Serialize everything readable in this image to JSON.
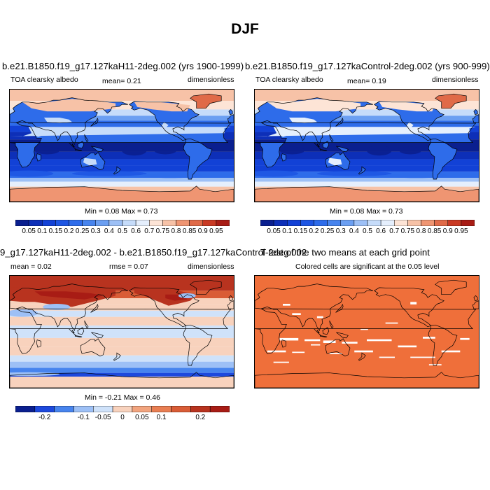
{
  "figure": {
    "title": "DJF"
  },
  "panels": [
    {
      "id": "case1",
      "title": "b.e21.B1850.f19_g17.127kaH11-2deg.002 (yrs 1900-1999)",
      "left_label": "TOA clearsky albedo",
      "center_label": "mean=  0.21",
      "right_label": "dimensionless",
      "minmax": "Min =   0.08 Max =   0.73",
      "colorbar_ticks": [
        "0.05",
        "0.1",
        "0.15",
        "0.2",
        "0.25",
        "0.3",
        "0.4",
        "0.5",
        "0.6",
        "0.7",
        "0.75",
        "0.8",
        "0.85",
        "0.9",
        "0.95"
      ]
    },
    {
      "id": "case2",
      "title": "b.e21.B1850.f19_g17.127kaControl-2deg.002 (yrs 900-999)",
      "left_label": "TOA clearsky albedo",
      "center_label": "mean=  0.19",
      "right_label": "dimensionless",
      "minmax": "Min =   0.08 Max =   0.73",
      "colorbar_ticks": [
        "0.05",
        "0.1",
        "0.15",
        "0.2",
        "0.25",
        "0.3",
        "0.4",
        "0.5",
        "0.6",
        "0.7",
        "0.75",
        "0.8",
        "0.85",
        "0.9",
        "0.95"
      ]
    },
    {
      "id": "diff",
      "title": "9_g17.127kaH11-2deg.002 - b.e21.B1850.f19_g17.127kaControl-2deg.002",
      "left_label": "mean =  0.02",
      "center_label": "rmse =  0.07",
      "right_label": "dimensionless",
      "minmax": "Min =  -0.21 Max =   0.46",
      "colorbar_ticks": [
        "-0.2",
        "-0.1",
        "-0.05",
        "0",
        "0.05",
        "0.1",
        "0.2"
      ]
    },
    {
      "id": "ttest",
      "title": "T-test of the two means at each grid point",
      "subtitle": "Colored cells are significant at the 0.05 level"
    }
  ],
  "colors": {
    "albedo_scale": [
      "#0a1f8f",
      "#0d2fb8",
      "#1241d6",
      "#1e56e3",
      "#2e6cea",
      "#4784ee",
      "#6b9ff2",
      "#9dc0f6",
      "#c6dcfa",
      "#e5effd",
      "#fde4d6",
      "#f7c2a7",
      "#ef9572",
      "#e06a48",
      "#c93a24",
      "#a81c15"
    ],
    "diff_scale": [
      "#0a1f8f",
      "#1d49dd",
      "#4784ee",
      "#9dc0f6",
      "#cfe2fa",
      "#f8d2bd",
      "#f2a47e",
      "#e97e52",
      "#d95c36",
      "#b8331f",
      "#a81c15"
    ],
    "ttest_fill": "#ef6f3a",
    "coast": "#000000"
  },
  "chart_data": [
    {
      "type": "heatmap",
      "title": "b.e21.B1850.f19_g17.127kaH11-2deg.002 (yrs 1900-1999)",
      "variable": "TOA clearsky albedo",
      "units": "dimensionless",
      "mean": 0.21,
      "min": 0.08,
      "max": 0.73,
      "levels": [
        0.05,
        0.1,
        0.15,
        0.2,
        0.25,
        0.3,
        0.4,
        0.5,
        0.6,
        0.7,
        0.75,
        0.8,
        0.85,
        0.9,
        0.95
      ]
    },
    {
      "type": "heatmap",
      "title": "b.e21.B1850.f19_g17.127kaControl-2deg.002 (yrs 900-999)",
      "variable": "TOA clearsky albedo",
      "units": "dimensionless",
      "mean": 0.19,
      "min": 0.08,
      "max": 0.73,
      "levels": [
        0.05,
        0.1,
        0.15,
        0.2,
        0.25,
        0.3,
        0.4,
        0.5,
        0.6,
        0.7,
        0.75,
        0.8,
        0.85,
        0.9,
        0.95
      ]
    },
    {
      "type": "heatmap",
      "title": "9_g17.127kaH11-2deg.002 - b.e21.B1850.f19_g17.127kaControl-2deg.002",
      "units": "dimensionless",
      "mean": 0.02,
      "rmse": 0.07,
      "min": -0.21,
      "max": 0.46,
      "levels": [
        -0.2,
        -0.1,
        -0.05,
        0,
        0.05,
        0.1,
        0.2
      ]
    },
    {
      "type": "heatmap",
      "title": "T-test of the two means at each grid point",
      "subtitle": "Colored cells are significant at the 0.05 level"
    }
  ]
}
